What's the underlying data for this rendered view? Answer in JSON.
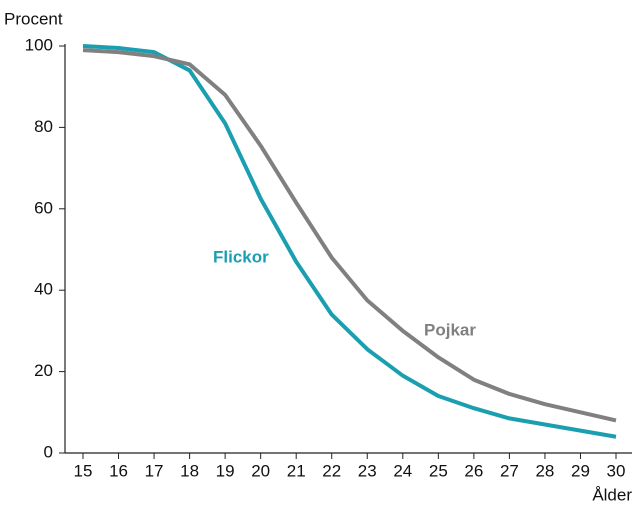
{
  "chart_data": {
    "type": "line",
    "y_label": "Procent",
    "x_label": "Ålder",
    "x": [
      15,
      16,
      17,
      18,
      19,
      20,
      21,
      22,
      23,
      24,
      25,
      26,
      27,
      28,
      29,
      30
    ],
    "series": [
      {
        "name": "Flickor",
        "color": "#1a9fb0",
        "values": [
          100,
          99.5,
          98.5,
          94,
          81,
          62.5,
          47,
          34,
          25.5,
          19,
          14,
          11,
          8.5,
          7,
          5.5,
          4
        ]
      },
      {
        "name": "Pojkar",
        "color": "#808080",
        "values": [
          99,
          98.5,
          97.5,
          95.5,
          88,
          75.5,
          61.5,
          48,
          37.5,
          30,
          23.5,
          18,
          14.5,
          12,
          10,
          8
        ]
      }
    ],
    "xlim": [
      15,
      30
    ],
    "ylim": [
      0,
      100
    ],
    "xticks": [
      15,
      16,
      17,
      18,
      19,
      20,
      21,
      22,
      23,
      24,
      25,
      26,
      27,
      28,
      29,
      30
    ],
    "yticks": [
      0,
      20,
      40,
      60,
      80,
      100
    ],
    "grid": false
  }
}
